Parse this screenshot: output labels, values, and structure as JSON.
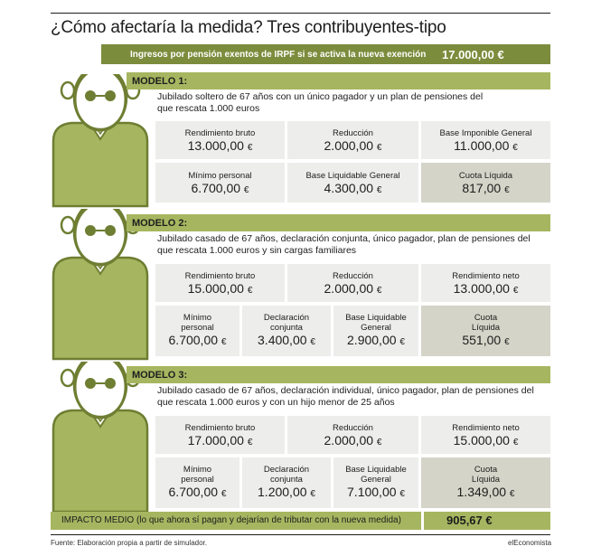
{
  "title": "¿Cómo afectaría la medida? Tres contribuyentes-tipo",
  "exempt_bar": {
    "label": "Ingresos por pensión exentos de IRPF si se activa la nueva exención",
    "value": "17.000,00 €"
  },
  "models": [
    {
      "heading": "MODELO 1:",
      "desc_line1": "Jubilado soltero de 67 años con un único pagador y un plan de pensiones del",
      "desc_line2": "que rescata 1.000 euros",
      "row1": [
        {
          "label": "Rendimiento bruto",
          "value": "13.000,00",
          "unit": "€"
        },
        {
          "label": "Reducción",
          "value": "2.000,00",
          "unit": "€"
        },
        {
          "label": "Base Imponible General",
          "value": "11.000,00",
          "unit": "€"
        }
      ],
      "row2": [
        {
          "label": "Mínimo personal",
          "value": "6.700,00",
          "unit": "€"
        },
        {
          "label": "Base Liquidable General",
          "value": "4.300,00",
          "unit": "€"
        },
        {
          "label": "Cuota Líquida",
          "value": "817,00",
          "unit": "€"
        }
      ]
    },
    {
      "heading": "MODELO 2:",
      "desc_line1": "Jubilado casado de 67 años, declaración conjunta, único pagador, plan de pensiones del",
      "desc_line2": "que rescata 1.000 euros y sin cargas familiares",
      "row1": [
        {
          "label": "Rendimiento bruto",
          "value": "15.000,00",
          "unit": "€"
        },
        {
          "label": "Reducción",
          "value": "2.000,00",
          "unit": "€"
        },
        {
          "label": "Rendimiento neto",
          "value": "13.000,00",
          "unit": "€"
        }
      ],
      "row2": [
        {
          "label1": "Mínimo",
          "label2": "personal",
          "value": "6.700,00",
          "unit": "€"
        },
        {
          "label1": "Declaración",
          "label2": "conjunta",
          "value": "3.400,00",
          "unit": "€"
        },
        {
          "label1": "Base Liquidable",
          "label2": "General",
          "value": "2.900,00",
          "unit": "€"
        },
        {
          "label1": "Cuota",
          "label2": "Líquida",
          "value": "551,00",
          "unit": "€"
        }
      ]
    },
    {
      "heading": "MODELO 3:",
      "desc_line1": "Jubilado casado de 67 años, declaración individual, único pagador, plan de pensiones del",
      "desc_line2": "que rescata 1.000 euros y con un hijo menor de 25 años",
      "row1": [
        {
          "label": "Rendimiento bruto",
          "value": "17.000,00",
          "unit": "€"
        },
        {
          "label": "Reducción",
          "value": "2.000,00",
          "unit": "€"
        },
        {
          "label": "Rendimiento neto",
          "value": "15.000,00",
          "unit": "€"
        }
      ],
      "row2": [
        {
          "label1": "Mínimo",
          "label2": "personal",
          "value": "6.700,00",
          "unit": "€"
        },
        {
          "label1": "Declaración",
          "label2": "conjunta",
          "value": "1.200,00",
          "unit": "€"
        },
        {
          "label1": "Base Liquidable",
          "label2": "General",
          "value": "7.100,00",
          "unit": "€"
        },
        {
          "label1": "Cuota",
          "label2": "Líquida",
          "value": "1.349,00",
          "unit": "€"
        }
      ]
    }
  ],
  "impact": {
    "label": "IMPACTO MEDIO (lo que ahora sí pagan y dejarían de tributar con la nueva medida)",
    "value": "905,67 €"
  },
  "source": "Fuente: Elaboración propia a partir de simulador.",
  "brand": "elEconomista",
  "colors": {
    "olive_dark": "#7b8c3c",
    "olive_light": "#a6b660",
    "cell": "#ededec",
    "cell_dark": "#d5d4c8"
  }
}
